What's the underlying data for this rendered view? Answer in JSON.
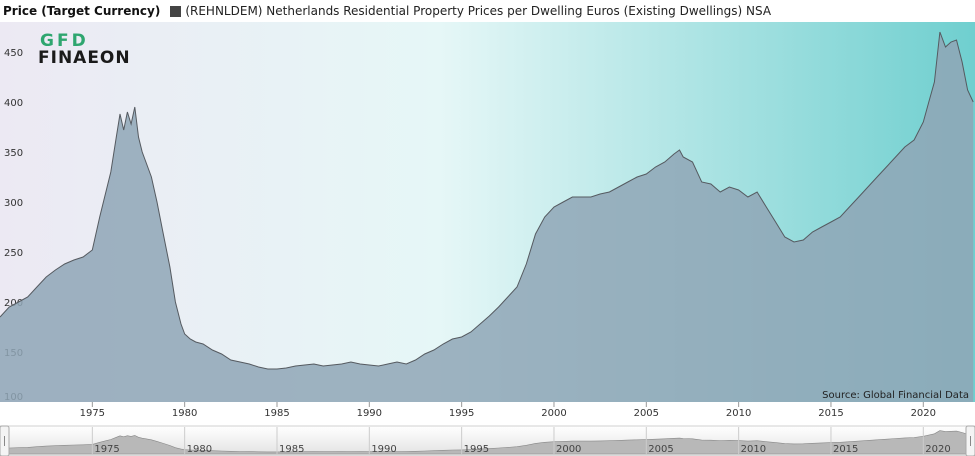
{
  "header": {
    "title": "Price (Target Currency)",
    "series_label": "(REHNLDEM) Netherlands Residential Property Prices per Dwelling Euros (Existing Dwellings) NSA"
  },
  "logo": {
    "line1": "GFD",
    "line2": "FINAEON"
  },
  "source": "Source: Global Financial Data",
  "colors": {
    "gradient_left": "#ece9f3",
    "gradient_mid": "#e6f7f7",
    "gradient_right": "#6fcfcf",
    "area_fill": "#8fa6b6",
    "line": "#555a60",
    "logo_green": "#2ea66f",
    "logo_dark": "#1a1a1a"
  },
  "chart_data": {
    "type": "area",
    "title": "",
    "xlabel": "",
    "ylabel": "",
    "xlim": [
      1970,
      2022.8
    ],
    "ylim": [
      100,
      480
    ],
    "y_ticks": [
      150,
      200,
      250,
      300,
      350,
      400,
      450
    ],
    "x_ticks": [
      1975,
      1980,
      1985,
      1990,
      1995,
      2000,
      2005,
      2010,
      2015,
      2020
    ],
    "navigator_ticks": [
      1975,
      1980,
      1985,
      1990,
      1995,
      2000,
      2005,
      2010,
      2015,
      2020
    ],
    "series": [
      {
        "name": "(REHNLDEM) Netherlands Residential Property Prices per Dwelling Euros (Existing Dwellings) NSA",
        "x": [
          1970.0,
          1970.5,
          1971.0,
          1971.5,
          1972.0,
          1972.5,
          1973.0,
          1973.5,
          1974.0,
          1974.5,
          1975.0,
          1975.4,
          1975.8,
          1976.0,
          1976.3,
          1976.5,
          1976.7,
          1976.9,
          1977.1,
          1977.3,
          1977.5,
          1977.7,
          1977.9,
          1978.2,
          1978.5,
          1978.8,
          1979.2,
          1979.5,
          1979.8,
          1980.0,
          1980.3,
          1980.6,
          1981.0,
          1981.5,
          1982.0,
          1982.5,
          1983.0,
          1983.5,
          1984.0,
          1984.5,
          1985.0,
          1985.5,
          1986.0,
          1986.5,
          1987.0,
          1987.5,
          1988.0,
          1988.5,
          1989.0,
          1989.5,
          1990.0,
          1990.5,
          1991.0,
          1991.5,
          1992.0,
          1992.5,
          1993.0,
          1993.5,
          1994.0,
          1994.5,
          1995.0,
          1995.5,
          1996.0,
          1996.5,
          1997.0,
          1997.5,
          1998.0,
          1998.5,
          1999.0,
          1999.5,
          2000.0,
          2000.5,
          2001.0,
          2001.5,
          2002.0,
          2002.5,
          2003.0,
          2003.5,
          2004.0,
          2004.5,
          2005.0,
          2005.5,
          2006.0,
          2006.5,
          2006.8,
          2007.0,
          2007.5,
          2008.0,
          2008.5,
          2009.0,
          2009.5,
          2010.0,
          2010.5,
          2011.0,
          2011.5,
          2012.0,
          2012.5,
          2013.0,
          2013.5,
          2014.0,
          2014.5,
          2015.0,
          2015.5,
          2016.0,
          2016.5,
          2017.0,
          2017.5,
          2018.0,
          2018.5,
          2019.0,
          2019.5,
          2020.0,
          2020.3,
          2020.6,
          2020.9,
          2021.2,
          2021.5,
          2021.8,
          2022.1,
          2022.4,
          2022.7
        ],
        "values": [
          185,
          195,
          200,
          205,
          215,
          225,
          232,
          238,
          242,
          245,
          252,
          285,
          315,
          330,
          365,
          388,
          372,
          390,
          378,
          395,
          365,
          350,
          340,
          325,
          300,
          272,
          235,
          200,
          178,
          168,
          163,
          160,
          158,
          152,
          148,
          142,
          140,
          138,
          135,
          133,
          133,
          134,
          136,
          137,
          138,
          136,
          137,
          138,
          140,
          138,
          137,
          136,
          138,
          140,
          138,
          142,
          148,
          152,
          158,
          163,
          165,
          170,
          178,
          186,
          195,
          205,
          215,
          238,
          268,
          285,
          295,
          300,
          305,
          305,
          305,
          308,
          310,
          315,
          320,
          325,
          328,
          335,
          340,
          348,
          352,
          345,
          340,
          320,
          318,
          310,
          315,
          312,
          305,
          310,
          295,
          280,
          265,
          260,
          262,
          270,
          275,
          280,
          285,
          295,
          305,
          315,
          325,
          335,
          345,
          355,
          362,
          380,
          400,
          420,
          470,
          455,
          460,
          462,
          440,
          412,
          400
        ]
      }
    ]
  }
}
